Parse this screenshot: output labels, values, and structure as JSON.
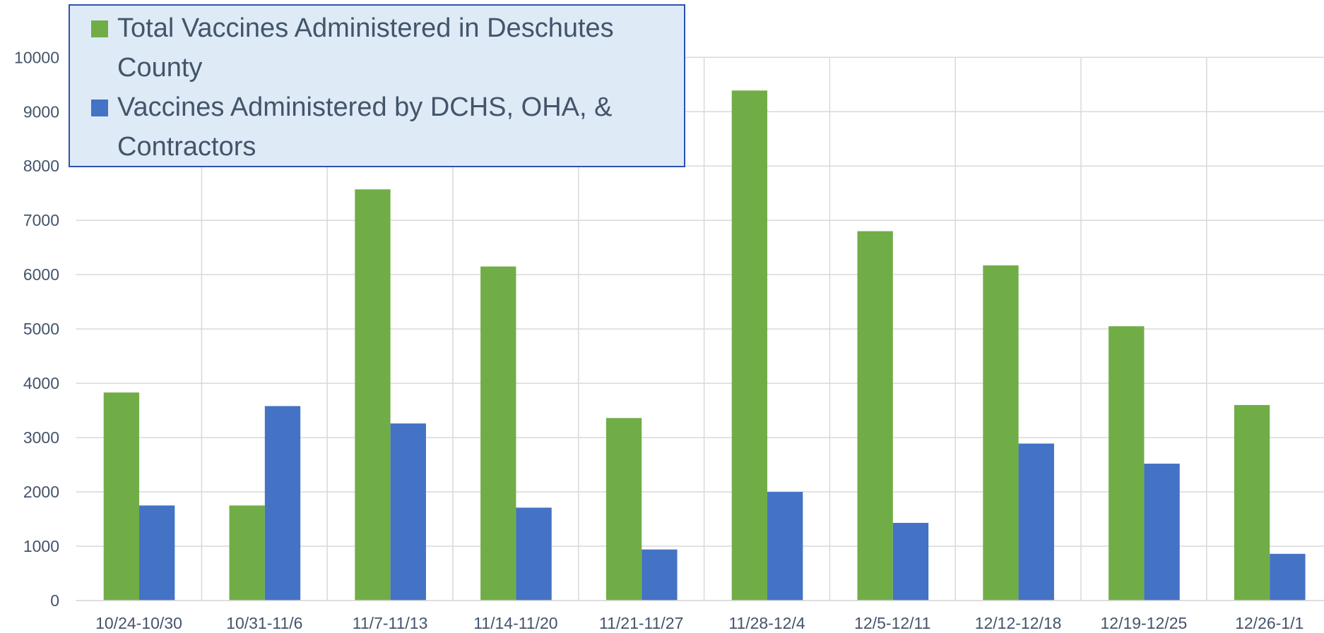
{
  "chart_data": {
    "type": "bar",
    "categories": [
      "10/24-10/30",
      "10/31-11/6",
      "11/7-11/13",
      "11/14-11/20",
      "11/21-11/27",
      "11/28-12/4",
      "12/5-12/11",
      "12/12-12/18",
      "12/19-12/25",
      "12/26-1/1"
    ],
    "series": [
      {
        "name": "Total Vaccines Administered in Deschutes County",
        "color": "#70ad47",
        "values": [
          3830,
          1750,
          7570,
          6150,
          3360,
          9390,
          6800,
          6170,
          5050,
          3600
        ]
      },
      {
        "name": "Vaccines Administered by DCHS, OHA, & Contractors",
        "color": "#4472c4",
        "values": [
          1750,
          3580,
          3260,
          1710,
          940,
          2000,
          1430,
          2890,
          2520,
          860
        ]
      }
    ],
    "ylim": [
      0,
      10000
    ],
    "yticks": [
      0,
      1000,
      2000,
      3000,
      4000,
      5000,
      6000,
      7000,
      8000,
      9000,
      10000
    ],
    "grid": true,
    "legend": "upper left"
  }
}
